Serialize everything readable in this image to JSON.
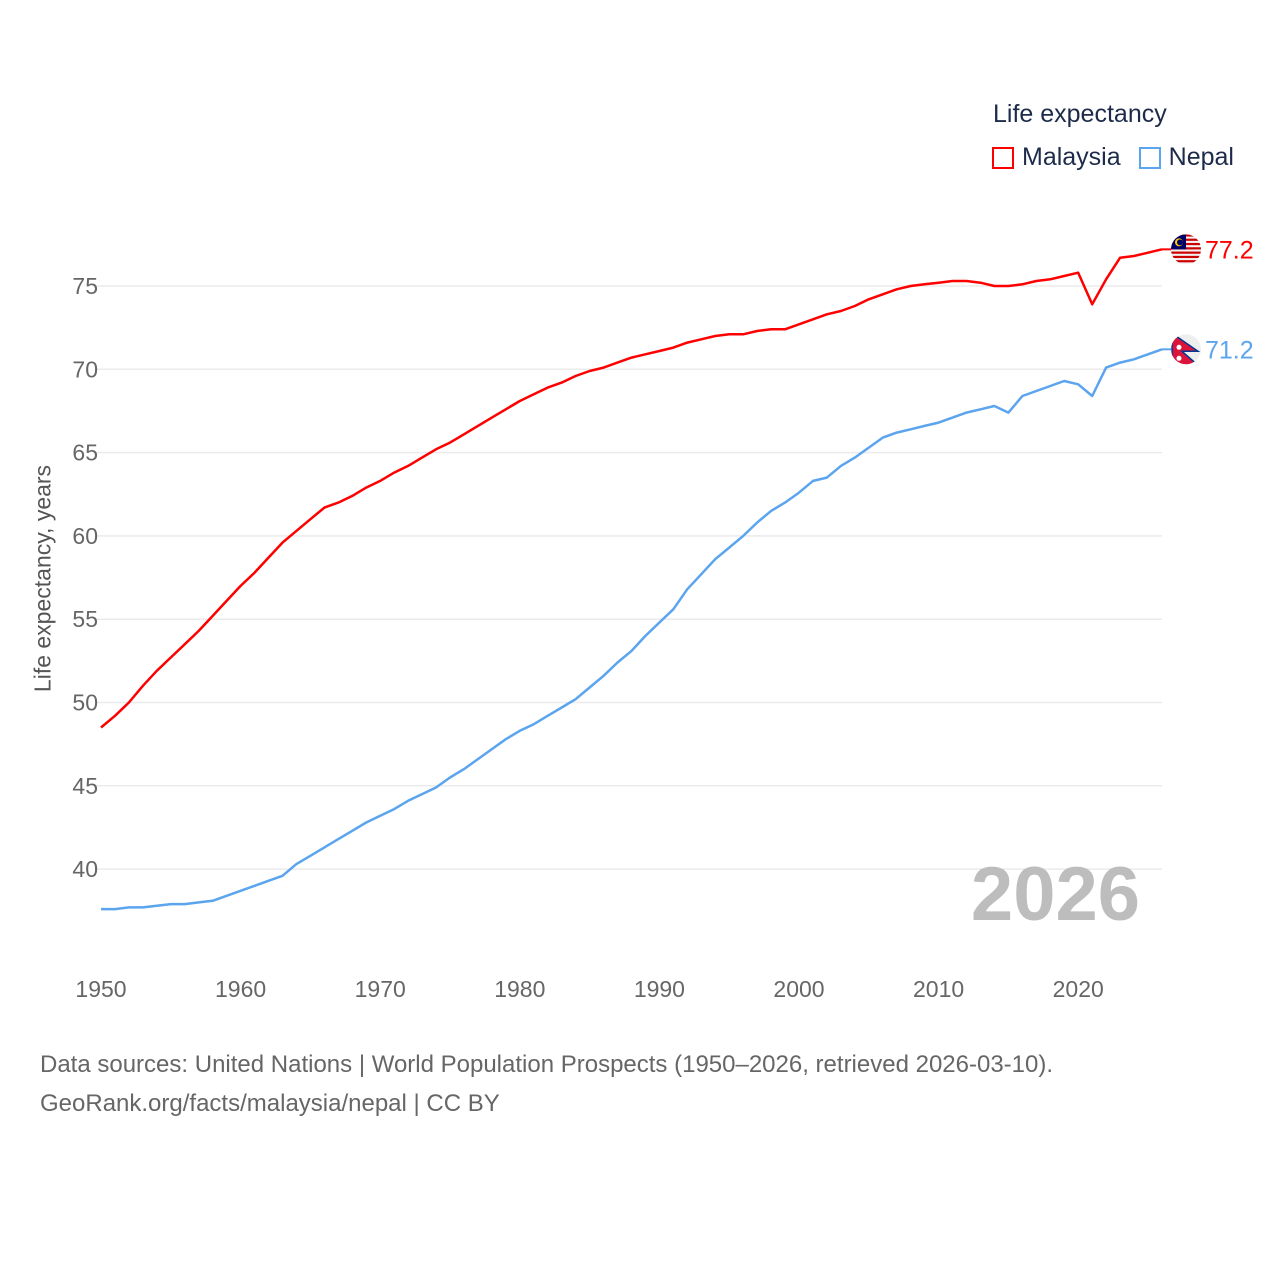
{
  "legend": {
    "title": "Life expectancy",
    "items": [
      {
        "label": "Malaysia",
        "color": "#ff0000"
      },
      {
        "label": "Nepal",
        "color": "#5ba4ee"
      }
    ]
  },
  "source": {
    "line1": "Data sources: United Nations | World Population Prospects (1950–2026, retrieved 2026-03-10).",
    "line2": "GeoRank.org/facts/malaysia/nepal | CC BY"
  },
  "chart_data": {
    "type": "line",
    "ylabel": "Life expectancy, years",
    "year_watermark": "2026",
    "xlim": [
      1950,
      2026
    ],
    "ylim": [
      35,
      78
    ],
    "x_ticks": [
      "1950",
      "1960",
      "1970",
      "1980",
      "1990",
      "2000",
      "2010",
      "2020"
    ],
    "y_ticks": [
      "40",
      "45",
      "50",
      "55",
      "60",
      "65",
      "70",
      "75"
    ],
    "grid": true,
    "legend_position": "top-right",
    "x": [
      1950,
      1951,
      1952,
      1953,
      1954,
      1955,
      1956,
      1957,
      1958,
      1959,
      1960,
      1961,
      1962,
      1963,
      1964,
      1965,
      1966,
      1967,
      1968,
      1969,
      1970,
      1971,
      1972,
      1973,
      1974,
      1975,
      1976,
      1977,
      1978,
      1979,
      1980,
      1981,
      1982,
      1983,
      1984,
      1985,
      1986,
      1987,
      1988,
      1989,
      1990,
      1991,
      1992,
      1993,
      1994,
      1995,
      1996,
      1997,
      1998,
      1999,
      2000,
      2001,
      2002,
      2003,
      2004,
      2005,
      2006,
      2007,
      2008,
      2009,
      2010,
      2011,
      2012,
      2013,
      2014,
      2015,
      2016,
      2017,
      2018,
      2019,
      2020,
      2021,
      2022,
      2023,
      2024,
      2025,
      2026
    ],
    "series": [
      {
        "name": "Malaysia",
        "end_label": "77.2",
        "values": [
          48.5,
          49.2,
          50.0,
          51.0,
          51.9,
          52.7,
          53.5,
          54.3,
          55.2,
          56.1,
          57.0,
          57.8,
          58.7,
          59.6,
          60.3,
          61.0,
          61.7,
          62.0,
          62.4,
          62.9,
          63.3,
          63.8,
          64.2,
          64.7,
          65.2,
          65.6,
          66.1,
          66.6,
          67.1,
          67.6,
          68.1,
          68.5,
          68.9,
          69.2,
          69.6,
          69.9,
          70.1,
          70.4,
          70.7,
          70.9,
          71.1,
          71.3,
          71.6,
          71.8,
          72.0,
          72.1,
          72.1,
          72.3,
          72.4,
          72.4,
          72.7,
          73.0,
          73.3,
          73.5,
          73.8,
          74.2,
          74.5,
          74.8,
          75.0,
          75.1,
          75.2,
          75.3,
          75.3,
          75.2,
          75.0,
          75.0,
          75.1,
          75.3,
          75.4,
          75.6,
          75.8,
          73.9,
          75.4,
          76.7,
          76.8,
          77.0,
          77.2
        ]
      },
      {
        "name": "Nepal",
        "end_label": "71.2",
        "values": [
          37.6,
          37.6,
          37.7,
          37.7,
          37.8,
          37.9,
          37.9,
          38.0,
          38.1,
          38.4,
          38.7,
          39.0,
          39.3,
          39.6,
          40.3,
          40.8,
          41.3,
          41.8,
          42.3,
          42.8,
          43.2,
          43.6,
          44.1,
          44.5,
          44.9,
          45.5,
          46.0,
          46.6,
          47.2,
          47.8,
          48.3,
          48.7,
          49.2,
          49.7,
          50.2,
          50.9,
          51.6,
          52.4,
          53.1,
          54.0,
          54.8,
          55.6,
          56.8,
          57.7,
          58.6,
          59.3,
          60.0,
          60.8,
          61.5,
          62.0,
          62.6,
          63.3,
          63.5,
          64.2,
          64.7,
          65.3,
          65.9,
          66.2,
          66.4,
          66.6,
          66.8,
          67.1,
          67.4,
          67.6,
          67.8,
          67.4,
          68.4,
          68.7,
          69.0,
          69.3,
          69.1,
          68.4,
          70.1,
          70.4,
          70.6,
          70.9,
          71.2
        ]
      }
    ]
  }
}
